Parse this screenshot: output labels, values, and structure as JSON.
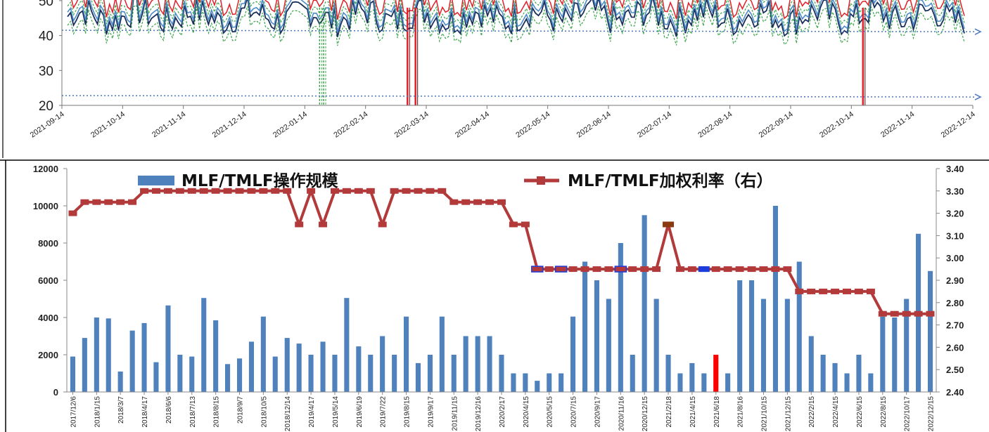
{
  "chart_data": [
    {
      "type": "line",
      "y_ticks": [
        20,
        30,
        40,
        50
      ],
      "y_tick_labels": [
        "20",
        "30",
        "40",
        "50"
      ],
      "x_labels": [
        "2021-09-14",
        "2021-10-14",
        "2021-11-14",
        "2021-12-14",
        "2022-01-14",
        "2022-02-14",
        "2022-03-14",
        "2022-04-14",
        "2022-05-14",
        "2022-06-14",
        "2022-07-14",
        "2022-08-14",
        "2022-09-14",
        "2022-10-14",
        "2022-11-14",
        "2022-12-14"
      ],
      "reference_lines": [
        41.5,
        22.8
      ],
      "series_colors": {
        "red": "#e0202a",
        "navy": "#1a2f5a",
        "blue": "#4d8bc9",
        "green": "#3aa64a"
      },
      "spikes": [
        {
          "x": "2022-03-06",
          "min": 20,
          "color": "red"
        },
        {
          "x": "2022-03-10",
          "min": 20,
          "color": "red"
        },
        {
          "x": "2022-10-20",
          "min": 20,
          "color": "red"
        },
        {
          "x": "2022-01-21",
          "min": 20,
          "color": "green"
        },
        {
          "x": "2022-01-23",
          "min": 20,
          "color": "green"
        }
      ]
    },
    {
      "type": "bar",
      "legend": {
        "bar_label": "MLF/TMLF操作规模",
        "line_label": "MLF/TMLF加权利率（右）"
      },
      "y_left_ticks": [
        "0",
        "2000",
        "4000",
        "6000",
        "8000",
        "10000",
        "12000"
      ],
      "y_right_ticks": [
        "2.40",
        "2.50",
        "2.60",
        "2.70",
        "2.80",
        "2.90",
        "3.00",
        "3.10",
        "3.20",
        "3.30",
        "3.40"
      ],
      "ylim_left": [
        0,
        12000
      ],
      "ylim_right": [
        2.4,
        3.4
      ],
      "x_labels": [
        "2017/12/6",
        "2018/1/15",
        "2018/3/7",
        "2018/4/17",
        "2018/6/6",
        "2018/7/13",
        "2018/8/15",
        "2018/9/7",
        "2018/10/5",
        "2018/12/14",
        "2019/4/17",
        "2019/5/14",
        "2019/6/19",
        "2019/7/22",
        "2019/8/15",
        "2019/9/17",
        "2019/11/15",
        "2019/12/16",
        "2020/2/17",
        "2020/4/15",
        "2020/5/15",
        "2020/7/15",
        "2020/9/17",
        "2020/11/16",
        "2020/12/15",
        "2021/2/18",
        "2021/4/15",
        "2021/6/18",
        "2021/8/16",
        "2021/10/15",
        "2021/12/15",
        "2022/2/15",
        "2022/4/15",
        "2022/6/15",
        "2022/8/15",
        "2022/10/17",
        "2022/12/15"
      ],
      "bars": [
        1900,
        2900,
        4000,
        3950,
        1100,
        3300,
        3700,
        1600,
        4650,
        2000,
        1900,
        5050,
        3850,
        1500,
        1800,
        2700,
        4050,
        1900,
        2900,
        2600,
        2000,
        2700,
        2000,
        5050,
        2450,
        2000,
        3000,
        2000,
        4050,
        1550,
        2000,
        4050,
        2000,
        3000,
        3000,
        3000,
        2000,
        1000,
        1000,
        600,
        1000,
        1000,
        4050,
        7000,
        6000,
        5000,
        8000,
        2000,
        9500,
        5000,
        2000,
        1000,
        1550,
        1000,
        2000,
        1000,
        6000,
        6000,
        5000,
        10000,
        5000,
        7000,
        3000,
        2000,
        1550,
        1000,
        2000,
        1000,
        4050,
        4000,
        5000,
        8500,
        6500
      ],
      "highlight_bar_index": 54,
      "rate": [
        3.2,
        3.25,
        3.25,
        3.25,
        3.25,
        3.25,
        3.3,
        3.3,
        3.3,
        3.3,
        3.3,
        3.3,
        3.3,
        3.3,
        3.3,
        3.3,
        3.3,
        3.3,
        3.3,
        3.15,
        3.3,
        3.15,
        3.3,
        3.3,
        3.3,
        3.3,
        3.15,
        3.3,
        3.3,
        3.3,
        3.3,
        3.3,
        3.25,
        3.25,
        3.25,
        3.25,
        3.25,
        3.15,
        3.15,
        2.95,
        2.95,
        2.95,
        2.95,
        2.95,
        2.95,
        2.95,
        2.95,
        2.95,
        2.95,
        2.95,
        3.15,
        2.95,
        2.95,
        2.95,
        2.95,
        2.95,
        2.95,
        2.95,
        2.95,
        2.95,
        2.95,
        2.85,
        2.85,
        2.85,
        2.85,
        2.85,
        2.85,
        2.85,
        2.75,
        2.75,
        2.75,
        2.75,
        2.75
      ],
      "highlight_markers": [
        {
          "index": 39,
          "color": "blue-outline"
        },
        {
          "index": 41,
          "color": "blue-outline"
        },
        {
          "index": 46,
          "color": "blue-outline"
        },
        {
          "index": 50,
          "color": "brown"
        },
        {
          "index": 53,
          "color": "blue"
        }
      ],
      "colors": {
        "bar": "#4f81bd",
        "bar_highlight": "#ff0000",
        "line": "#b23a3a",
        "marker_brown": "#8b3a0f",
        "marker_blue": "#1b3de0"
      }
    }
  ]
}
